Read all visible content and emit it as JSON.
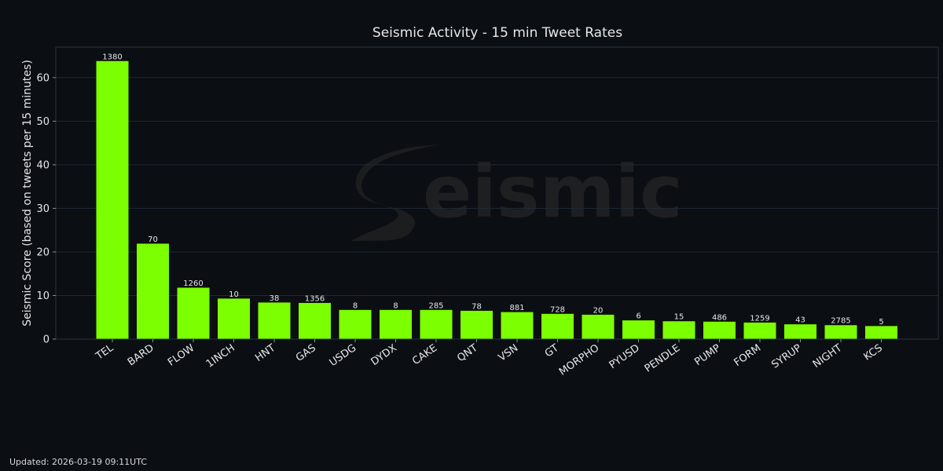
{
  "chart_data": {
    "type": "bar",
    "title": "Seismic Activity - 15 min Tweet Rates",
    "xlabel": "",
    "ylabel": "Seismic Score (based on tweets per 15 minutes)",
    "ylim": [
      0,
      67
    ],
    "yticks": [
      0,
      10,
      20,
      30,
      40,
      50,
      60
    ],
    "grid": true,
    "categories": [
      "TEL",
      "BARD",
      "FLOW",
      "1INCH",
      "HNT",
      "GAS",
      "USDG",
      "DYDX",
      "CAKE",
      "QNT",
      "VSN",
      "GT",
      "MORPHO",
      "PYUSD",
      "PENDLE",
      "PUMP",
      "FORM",
      "SYRUP",
      "NIGHT",
      "KCS"
    ],
    "values": [
      63.8,
      21.9,
      11.8,
      9.3,
      8.4,
      8.3,
      6.7,
      6.7,
      6.7,
      6.5,
      6.2,
      5.8,
      5.6,
      4.3,
      4.1,
      4.0,
      3.8,
      3.4,
      3.2,
      3.0
    ],
    "data_labels": [
      "1380",
      "70",
      "1260",
      "10",
      "38",
      "1356",
      "8",
      "8",
      "285",
      "78",
      "881",
      "728",
      "20",
      "6",
      "15",
      "486",
      "1259",
      "43",
      "2785",
      "5"
    ],
    "bar_color": "#7cff00"
  },
  "watermark": {
    "text": "eismic"
  },
  "colors": {
    "background": "#0b0e12",
    "text": "#e6e8ea",
    "grid": "#1f2a38",
    "bar": "#7cff00"
  },
  "footer": {
    "updated": "Updated: 2026-03-19 09:11UTC"
  }
}
